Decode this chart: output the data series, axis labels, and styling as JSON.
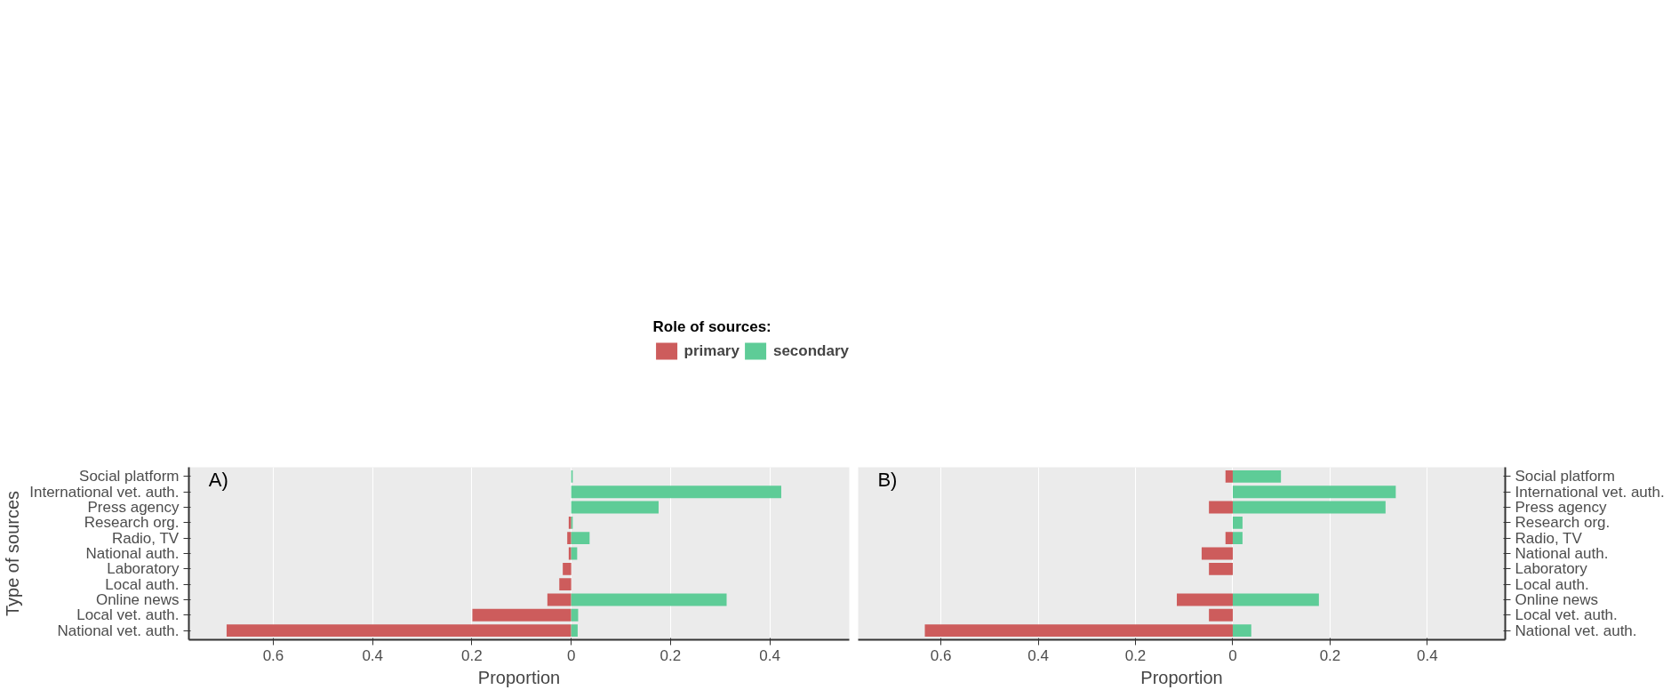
{
  "chart_data": [
    {
      "type": "bar",
      "orientation": "horizontal",
      "annotations": [
        "A)"
      ],
      "ylabel": "Type of sources",
      "xlabel": "Proportion",
      "legend_title": "Role of sources:",
      "legend": "top",
      "categories": [
        "Social platform",
        "International vet. auth.",
        "Press agency",
        "Research org.",
        "Radio, TV",
        "National auth.",
        "Laboratory",
        "Local auth.",
        "Online news",
        "Local vet. auth.",
        "National vet. auth."
      ],
      "series": [
        {
          "name": "primary",
          "color": "#cd5c5c",
          "values": [
            0,
            0,
            0,
            -0.005,
            -0.008,
            -0.005,
            -0.017,
            -0.024,
            -0.048,
            -0.199,
            -0.694
          ]
        },
        {
          "name": "secondary",
          "color": "#5ecc97",
          "values": [
            0.003,
            0.423,
            0.176,
            0.003,
            0.037,
            0.012,
            0,
            0,
            0.313,
            0.014,
            0.013
          ]
        }
      ],
      "xlim": [
        -0.77,
        0.56
      ],
      "xticks": [
        {
          "value": -0.6,
          "label": "0.6"
        },
        {
          "value": -0.4,
          "label": "0.4"
        },
        {
          "value": -0.2,
          "label": "0.2"
        },
        0,
        0.2,
        0.4
      ],
      "grid": "x"
    },
    {
      "type": "bar",
      "orientation": "horizontal",
      "annotations": [
        "B)"
      ],
      "xlabel": "Proportion",
      "categories": [
        "Social platform",
        "International vet. auth.",
        "Press agency",
        "Research org.",
        "Radio, TV",
        "National auth.",
        "Laboratory",
        "Local auth.",
        "Online news",
        "Local vet. auth.",
        "National vet. auth."
      ],
      "series": [
        {
          "color": "#cd5c5c",
          "values": [
            -0.015,
            0,
            -0.049,
            0,
            -0.015,
            -0.064,
            -0.049,
            0,
            -0.115,
            -0.049,
            -0.633
          ]
        },
        {
          "color": "#5ecc97",
          "values": [
            0.099,
            0.335,
            0.314,
            0.02,
            0.02,
            0,
            0,
            0,
            0.177,
            0,
            0.038
          ]
        }
      ],
      "xlim": [
        -0.77,
        0.56
      ],
      "xticks": [
        {
          "value": -0.6,
          "label": "0.6"
        },
        {
          "value": -0.4,
          "label": "0.4"
        },
        {
          "value": -0.2,
          "label": "0.2"
        },
        0,
        0.2,
        0.4
      ],
      "grid": "x"
    }
  ]
}
